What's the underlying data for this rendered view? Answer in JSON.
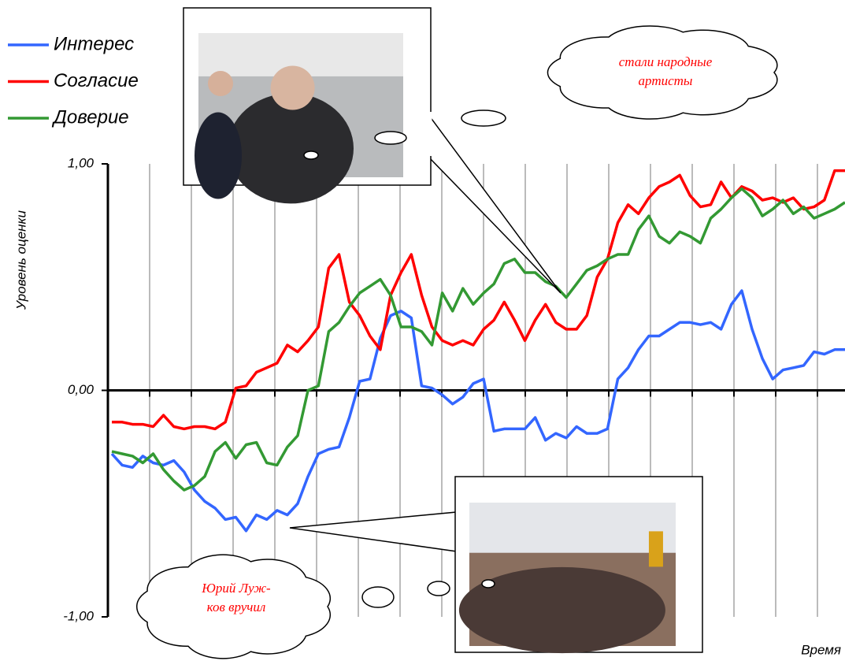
{
  "chart_data": {
    "type": "line",
    "ylabel": "Уровень оценки",
    "xlabel": "Время",
    "ylim": [
      -1,
      1
    ],
    "yticks": [
      {
        "value": 1,
        "label": "1,00"
      },
      {
        "value": 0,
        "label": "0,00"
      },
      {
        "value": -1,
        "label": "-1,00"
      }
    ],
    "grid": true,
    "legend": "top-left",
    "categories": [
      null,
      null,
      null,
      null,
      null,
      null,
      null,
      null,
      null,
      null,
      null,
      null,
      null,
      null,
      null,
      null,
      null,
      null,
      null,
      null,
      null,
      null,
      null,
      null,
      null,
      null,
      null,
      null,
      null,
      null,
      null,
      null,
      null,
      null,
      null,
      null,
      null,
      null,
      null,
      null,
      null,
      null,
      null,
      null,
      null,
      null,
      null,
      null,
      null,
      null,
      null,
      null,
      null,
      null,
      null,
      null,
      null,
      null,
      null,
      null,
      null,
      null,
      null,
      null,
      null,
      null,
      null,
      null,
      null,
      null,
      null,
      null
    ],
    "series": [
      {
        "name": "Интерес",
        "color": "#3366ff",
        "values": [
          -0.28,
          -0.33,
          -0.34,
          -0.29,
          -0.32,
          -0.33,
          -0.31,
          -0.36,
          -0.44,
          -0.49,
          -0.52,
          -0.57,
          -0.56,
          -0.62,
          -0.55,
          -0.57,
          -0.53,
          -0.55,
          -0.5,
          -0.38,
          -0.28,
          -0.26,
          -0.25,
          -0.12,
          0.04,
          0.05,
          0.23,
          0.33,
          0.35,
          0.32,
          0.02,
          0.01,
          -0.02,
          -0.06,
          -0.03,
          0.03,
          0.05,
          -0.18,
          -0.17,
          -0.17,
          -0.17,
          -0.12,
          -0.22,
          -0.19,
          -0.21,
          -0.16,
          -0.19,
          -0.19,
          -0.17,
          0.05,
          0.1,
          0.18,
          0.24,
          0.24,
          0.27,
          0.3,
          0.3,
          0.29,
          0.3,
          0.27,
          0.38,
          0.44,
          0.27,
          0.14,
          0.05,
          0.09,
          0.1,
          0.11,
          0.17,
          0.16,
          0.18,
          0.18
        ]
      },
      {
        "name": "Согласие",
        "color": "#ff0000",
        "values": [
          -0.14,
          -0.14,
          -0.15,
          -0.15,
          -0.16,
          -0.11,
          -0.16,
          -0.17,
          -0.16,
          -0.16,
          -0.17,
          -0.14,
          0.01,
          0.02,
          0.08,
          0.1,
          0.12,
          0.2,
          0.17,
          0.22,
          0.28,
          0.54,
          0.6,
          0.39,
          0.33,
          0.24,
          0.18,
          0.42,
          0.52,
          0.6,
          0.42,
          0.28,
          0.22,
          0.2,
          0.22,
          0.2,
          0.27,
          0.31,
          0.39,
          0.31,
          0.22,
          0.31,
          0.38,
          0.3,
          0.27,
          0.27,
          0.33,
          0.5,
          0.58,
          0.74,
          0.82,
          0.78,
          0.85,
          0.9,
          0.92,
          0.95,
          0.86,
          0.81,
          0.82,
          0.92,
          0.85,
          0.9,
          0.88,
          0.84,
          0.85,
          0.83,
          0.85,
          0.8,
          0.81,
          0.84,
          0.97,
          0.97
        ]
      },
      {
        "name": "Доверие",
        "color": "#339933",
        "values": [
          -0.27,
          -0.28,
          -0.29,
          -0.32,
          -0.28,
          -0.35,
          -0.4,
          -0.44,
          -0.42,
          -0.38,
          -0.27,
          -0.23,
          -0.3,
          -0.24,
          -0.23,
          -0.32,
          -0.33,
          -0.25,
          -0.2,
          0.0,
          0.02,
          0.26,
          0.3,
          0.37,
          0.43,
          0.46,
          0.49,
          0.42,
          0.28,
          0.28,
          0.26,
          0.2,
          0.43,
          0.35,
          0.45,
          0.38,
          0.43,
          0.47,
          0.56,
          0.58,
          0.52,
          0.52,
          0.48,
          0.46,
          0.41,
          0.47,
          0.53,
          0.55,
          0.58,
          0.6,
          0.6,
          0.71,
          0.77,
          0.68,
          0.65,
          0.7,
          0.68,
          0.65,
          0.76,
          0.8,
          0.85,
          0.89,
          0.85,
          0.77,
          0.8,
          0.84,
          0.78,
          0.81,
          0.76,
          0.78,
          0.8,
          0.83
        ]
      }
    ],
    "annotations": [
      {
        "lines": [
          "стали народные",
          "артисты"
        ]
      },
      {
        "lines": [
          "Юрий Луж-",
          "ков вручил"
        ]
      }
    ]
  }
}
